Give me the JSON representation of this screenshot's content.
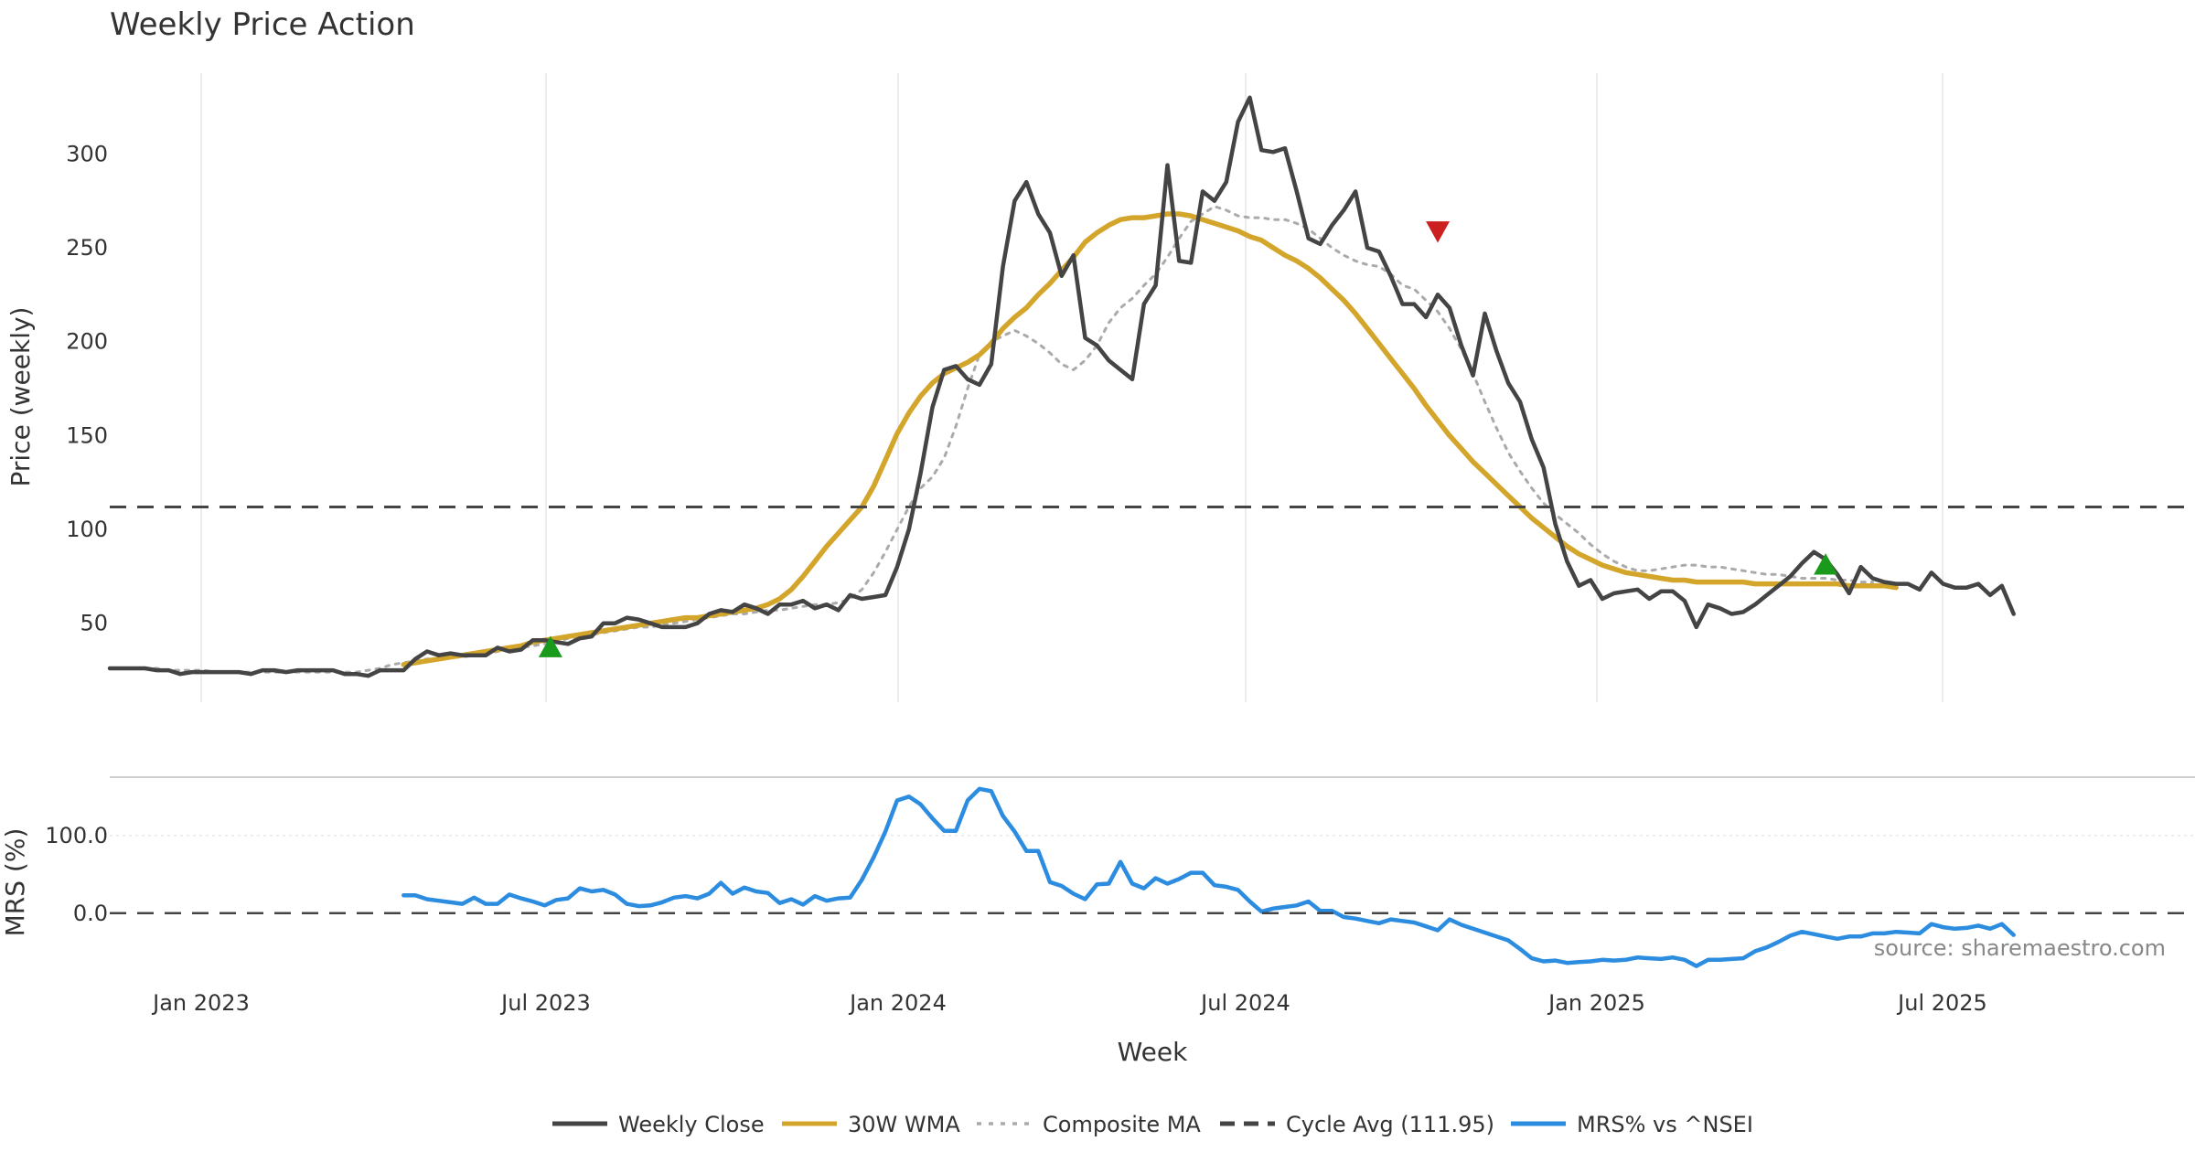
{
  "chart_data": [
    {
      "type": "line",
      "title": "Weekly Price Action",
      "xlabel": "",
      "ylabel": "Price (weekly)",
      "y_ticks": [
        50,
        100,
        150,
        200,
        250,
        300
      ],
      "ylim": [
        8,
        343
      ],
      "x_tick_labels": [
        "Jan 2023",
        "Jul 2023",
        "Jan 2024",
        "Jul 2024",
        "Jan 2025",
        "Jul 2025"
      ],
      "grid": true,
      "x_start_week": 0,
      "series": [
        {
          "name": "Weekly Close",
          "color": "#444444",
          "style": "solid",
          "start_week": 0,
          "values": [
            26,
            26,
            26,
            26,
            25,
            25,
            23,
            24,
            24,
            24,
            24,
            24,
            23,
            25,
            25,
            24,
            25,
            25,
            25,
            25,
            23,
            23,
            22,
            25,
            25,
            25,
            31,
            35,
            33,
            34,
            33,
            33,
            33,
            37,
            35,
            36,
            41,
            41,
            40,
            39,
            42,
            43,
            50,
            50,
            53,
            52,
            50,
            48,
            48,
            48,
            50,
            55,
            57,
            56,
            60,
            58,
            55,
            60,
            60,
            62,
            58,
            60,
            57,
            65,
            63,
            64,
            65,
            80,
            100,
            130,
            165,
            185,
            187,
            180,
            177,
            188,
            240,
            275,
            285,
            268,
            258,
            235,
            246,
            202,
            198,
            190,
            185,
            180,
            220,
            230,
            294,
            243,
            242,
            280,
            275,
            285,
            317,
            330,
            302,
            301,
            303,
            280,
            255,
            252,
            262,
            270,
            280,
            250,
            248,
            235,
            220,
            220,
            213,
            225,
            218,
            198,
            182,
            215,
            195,
            178,
            168,
            148,
            133,
            103,
            83,
            70,
            73,
            63,
            66,
            67,
            68,
            63,
            67,
            67,
            62,
            48,
            60,
            58,
            55,
            56,
            60,
            65,
            70,
            75,
            82,
            88,
            84,
            76,
            66,
            80,
            74,
            72,
            71,
            71,
            68,
            77,
            71,
            69,
            69,
            71,
            65,
            70,
            55
          ]
        },
        {
          "name": "30W WMA",
          "color": "#D4A52B",
          "style": "solid",
          "start_week": 25,
          "values": [
            28,
            29,
            30,
            31,
            32,
            33,
            34,
            35,
            36,
            37,
            38,
            40,
            41,
            42,
            43,
            44,
            45,
            46,
            47,
            48,
            49,
            50,
            51,
            52,
            53,
            53,
            54,
            55,
            56,
            57,
            58,
            60,
            63,
            68,
            75,
            83,
            91,
            98,
            105,
            112,
            123,
            137,
            151,
            162,
            171,
            178,
            183,
            186,
            189,
            193,
            199,
            207,
            213,
            218,
            225,
            231,
            238,
            245,
            253,
            258,
            262,
            265,
            266,
            266,
            267,
            268,
            268,
            267,
            265,
            263,
            261,
            259,
            256,
            254,
            250,
            246,
            243,
            239,
            234,
            228,
            222,
            215,
            207,
            199,
            191,
            183,
            175,
            166,
            158,
            150,
            143,
            136,
            130,
            124,
            118,
            112,
            106,
            101,
            96,
            91,
            87,
            84,
            81,
            79,
            77,
            76,
            75,
            74,
            73,
            73,
            72,
            72,
            72,
            72,
            72,
            71,
            71,
            71,
            71,
            71,
            71,
            71,
            71,
            70,
            70,
            70,
            70,
            69
          ]
        },
        {
          "name": "Composite MA",
          "color": "#AAAAAA",
          "style": "dotted",
          "start_week": 3,
          "values": [
            26,
            26,
            25,
            25,
            25,
            25,
            24,
            24,
            24,
            24,
            24,
            24,
            24,
            24,
            24,
            24,
            24,
            24,
            24,
            25,
            26,
            28,
            29,
            30,
            31,
            31,
            32,
            32,
            33,
            34,
            35,
            36,
            37,
            38,
            39,
            40,
            42,
            43,
            44,
            45,
            46,
            47,
            48,
            48,
            49,
            50,
            51,
            52,
            53,
            54,
            55,
            55,
            56,
            57,
            57,
            58,
            59,
            60,
            60,
            61,
            63,
            68,
            77,
            88,
            100,
            112,
            122,
            128,
            138,
            155,
            175,
            193,
            200,
            203,
            206,
            203,
            199,
            194,
            188,
            185,
            190,
            198,
            210,
            218,
            223,
            230,
            236,
            245,
            255,
            264,
            268,
            272,
            270,
            267,
            266,
            266,
            265,
            265,
            263,
            260,
            255,
            250,
            246,
            243,
            241,
            240,
            236,
            230,
            228,
            222,
            216,
            207,
            196,
            183,
            168,
            154,
            141,
            131,
            122,
            114,
            108,
            103,
            98,
            92,
            87,
            83,
            80,
            78,
            78,
            79,
            80,
            81,
            81,
            80,
            80,
            79,
            78,
            77,
            76,
            76,
            75,
            74,
            74,
            74,
            73,
            73,
            72,
            72
          ]
        },
        {
          "name": "Cycle Avg (111.95)",
          "color": "#444444",
          "style": "dashed",
          "type": "hline",
          "value": 111.95
        }
      ],
      "markers": [
        {
          "type": "buy",
          "shape": "triangle-up",
          "color": "#1A9A1A",
          "week": 37.5,
          "value": 37
        },
        {
          "type": "sell",
          "shape": "triangle-down",
          "color": "#CC1F1F",
          "week": 113,
          "value": 259
        },
        {
          "type": "buy",
          "shape": "triangle-up",
          "color": "#1A9A1A",
          "week": 146,
          "value": 81
        }
      ]
    },
    {
      "type": "line",
      "title": "",
      "xlabel": "Week",
      "ylabel": "MRS (%)",
      "y_ticks": [
        0.0,
        100.0
      ],
      "y_tick_labels": [
        "0.0",
        "100.0"
      ],
      "ylim": [
        -72,
        175
      ],
      "x_tick_labels": [
        "Jan 2023",
        "Jul 2023",
        "Jan 2024",
        "Jul 2024",
        "Jan 2025",
        "Jul 2025"
      ],
      "grid": true,
      "series": [
        {
          "name": "MRS% vs ^NSEI",
          "color": "#2B8CE0",
          "style": "solid",
          "start_week": 25,
          "values": [
            23,
            23,
            18,
            16,
            14,
            12,
            20,
            12,
            12,
            24,
            19,
            15,
            10,
            17,
            19,
            32,
            28,
            30,
            24,
            12,
            9,
            10,
            14,
            20,
            22,
            19,
            25,
            39,
            25,
            33,
            28,
            26,
            13,
            18,
            11,
            22,
            16,
            19,
            20,
            43,
            72,
            105,
            145,
            150,
            140,
            122,
            106,
            106,
            145,
            160,
            157,
            125,
            105,
            80,
            80,
            40,
            35,
            25,
            18,
            37,
            38,
            66,
            38,
            32,
            45,
            38,
            44,
            52,
            52,
            36,
            34,
            30,
            15,
            2,
            6,
            8,
            10,
            15,
            3,
            3,
            -5,
            -7,
            -10,
            -13,
            -8,
            -10,
            -12,
            -17,
            -22,
            -8,
            -15,
            -20,
            -25,
            -30,
            -35,
            -46,
            -58,
            -62,
            -61,
            -64,
            -63,
            -62,
            -60,
            -61,
            -60,
            -57,
            -58,
            -59,
            -57,
            -60,
            -68,
            -60,
            -60,
            -59,
            -58,
            -49,
            -44,
            -37,
            -29,
            -24,
            -27,
            -30,
            -33,
            -30,
            -30,
            -26,
            -26,
            -24,
            -25,
            -26,
            -14,
            -18,
            -20,
            -19,
            -16,
            -20,
            -14,
            -28
          ]
        },
        {
          "name": "zero line",
          "color": "#444444",
          "style": "dashed",
          "type": "hline",
          "value": 0
        }
      ],
      "annotations": [
        "source: sharemaestro.com"
      ]
    }
  ],
  "legend": [
    {
      "label": "Weekly Close",
      "color": "#444444",
      "style": "solid"
    },
    {
      "label": "30W WMA",
      "color": "#D4A52B",
      "style": "solid"
    },
    {
      "label": "Composite MA",
      "color": "#AAAAAA",
      "style": "dotted"
    },
    {
      "label": "Cycle Avg (111.95)",
      "color": "#444444",
      "style": "dashed"
    },
    {
      "label": "MRS% vs ^NSEI",
      "color": "#2B8CE0",
      "style": "solid"
    }
  ]
}
